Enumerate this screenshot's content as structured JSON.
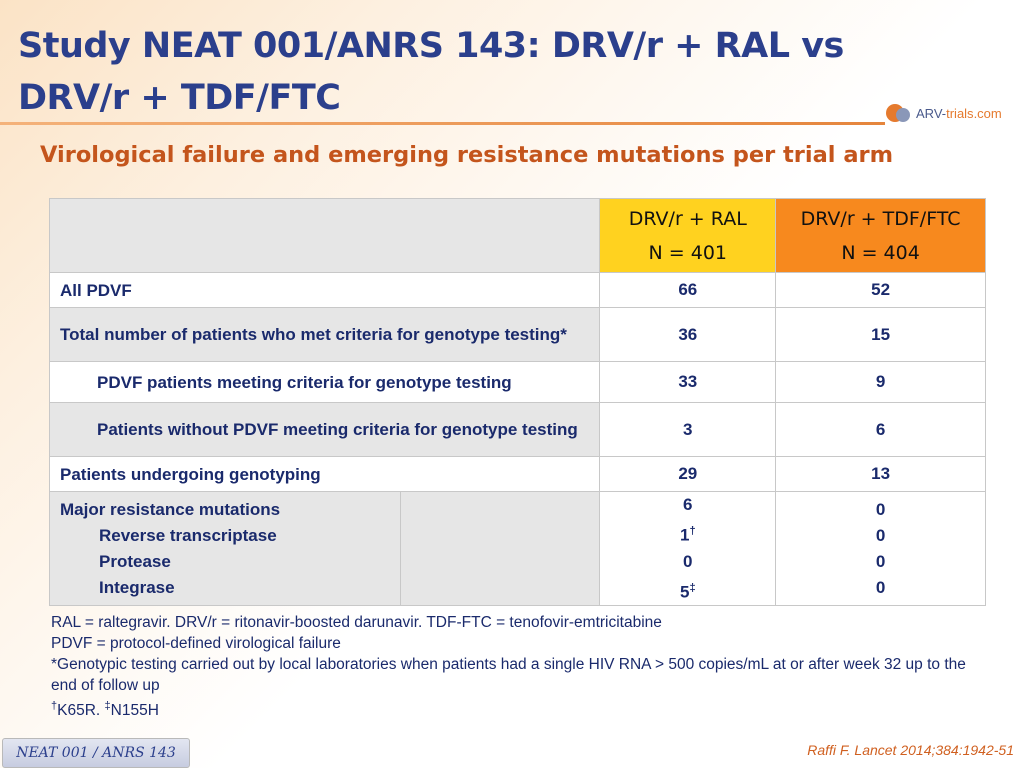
{
  "title": {
    "line1": "Study NEAT 001/ANRS 143: DRV/r + RAL vs",
    "line2": "DRV/r + TDF/FTC"
  },
  "logo": {
    "part1": "ARV-",
    "part2": "trials",
    "part3": ".com"
  },
  "subtitle": "Virological failure and emerging resistance mutations per trial arm",
  "table": {
    "columns": [
      {
        "name": "DRV/r + RAL",
        "n": "N = 401",
        "color": "#ffd21f"
      },
      {
        "name": "DRV/r + TDF/FTC",
        "n": "N = 404",
        "color": "#f7891e"
      }
    ],
    "rows": {
      "all_pdvf": {
        "label": "All PDVF",
        "v1": "66",
        "v2": "52"
      },
      "total_genotype": {
        "label": "Total number of patients who met criteria for genotype testing*",
        "v1": "36",
        "v2": "15"
      },
      "pdvf_genotype": {
        "label": "PDVF patients meeting criteria for genotype testing",
        "v1": "33",
        "v2": "9"
      },
      "without_pdvf": {
        "label": "Patients without PDVF meeting criteria for genotype testing",
        "v1": "3",
        "v2": "6"
      },
      "genotyping": {
        "label": "Patients undergoing genotyping",
        "v1": "29",
        "v2": "13"
      },
      "mutations": {
        "label": "Major resistance mutations",
        "v1": "6",
        "v2": "0",
        "sub": [
          {
            "label": "Reverse transcriptase",
            "v1": "1",
            "v1_mark": "†",
            "v2": "0"
          },
          {
            "label": "Protease",
            "v1": "0",
            "v1_mark": "",
            "v2": "0"
          },
          {
            "label": "Integrase",
            "v1": "5",
            "v1_mark": "‡",
            "v2": "0"
          }
        ]
      }
    }
  },
  "notes": {
    "line1": "RAL = raltegravir. DRV/r = ritonavir-boosted darunavir. TDF-FTC = tenofovir-emtricitabine",
    "line2": "PDVF = protocol-defined virological failure",
    "line3": "*Genotypic testing carried out by local laboratories when patients had a single HIV RNA > 500 copies/mL at or after week 32 up to the end of follow up",
    "line4_mark1": "†",
    "line4_text1": "K65R. ",
    "line4_mark2": "‡",
    "line4_text2": "N155H"
  },
  "footer_tag": "NEAT 001 / ANRS 143",
  "citation": "Raffi F. Lancet 2014;384:1942-51"
}
